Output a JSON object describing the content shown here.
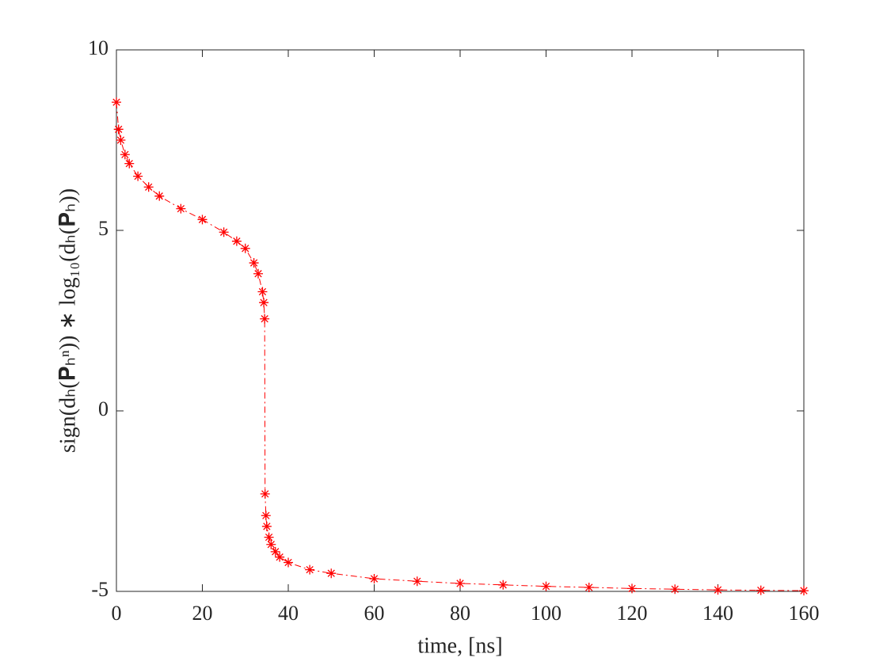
{
  "chart_data": {
    "type": "line",
    "xlabel": "time, [ns]",
    "ylabel": "sign(dₕ(𝐏ₕⁿ)) ∗ log₁₀(dₕ(𝐏ₕ))",
    "x": [
      0,
      0.5,
      1,
      2,
      3,
      5,
      7.5,
      10,
      15,
      20,
      25,
      28,
      30,
      32,
      33,
      34,
      34.3,
      34.5,
      34.6,
      34.8,
      35,
      35.5,
      36,
      37,
      38,
      40,
      45,
      50,
      60,
      70,
      80,
      90,
      100,
      110,
      120,
      130,
      140,
      150,
      160
    ],
    "series": [
      {
        "color": "#ff0000",
        "values": [
          8.55,
          7.8,
          7.5,
          7.1,
          6.85,
          6.5,
          6.2,
          5.95,
          5.6,
          5.3,
          4.95,
          4.7,
          4.5,
          4.1,
          3.8,
          3.3,
          3.0,
          2.55,
          -2.3,
          -2.9,
          -3.2,
          -3.5,
          -3.7,
          -3.9,
          -4.05,
          -4.2,
          -4.4,
          -4.5,
          -4.65,
          -4.72,
          -4.78,
          -4.82,
          -4.86,
          -4.89,
          -4.92,
          -4.94,
          -4.96,
          -4.97,
          -4.98
        ]
      }
    ],
    "xlim": [
      0,
      160
    ],
    "xticks": [
      0,
      20,
      40,
      60,
      80,
      100,
      120,
      140,
      160
    ],
    "ylim": [
      -5,
      10
    ],
    "yticks": [
      -5,
      0,
      5,
      10
    ],
    "grid": false
  }
}
